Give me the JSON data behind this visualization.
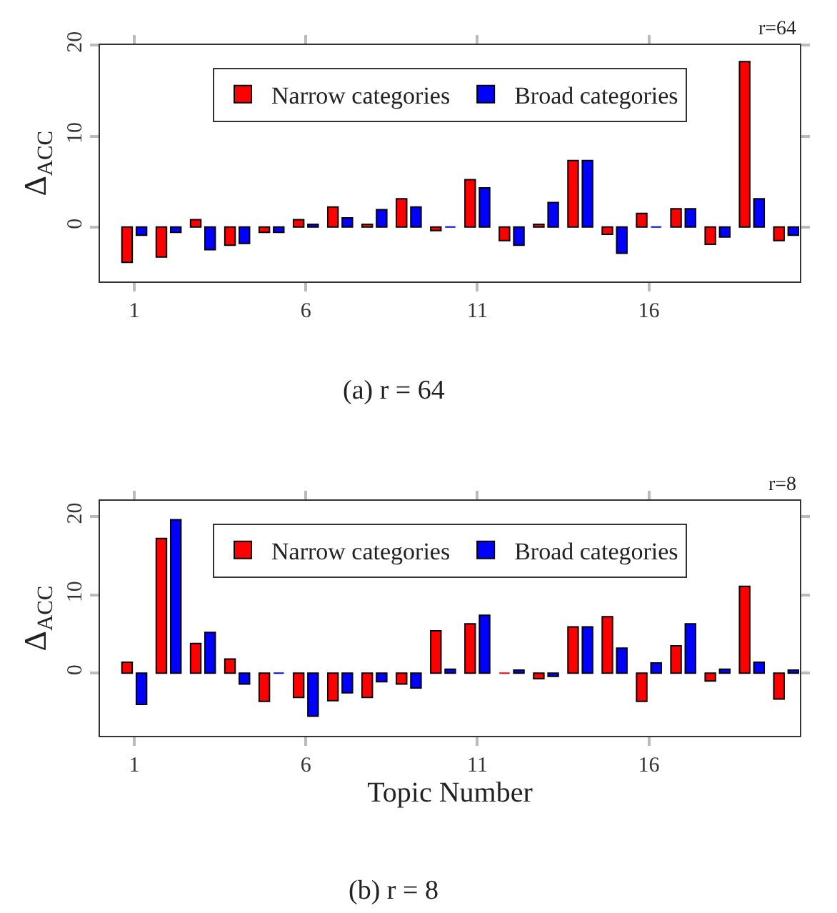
{
  "chart_data": [
    {
      "type": "bar",
      "ylabel": "Δ$_{ACC}$",
      "annotations": [
        "r=64",
        "(a) r = 64"
      ],
      "x": [
        1,
        2,
        3,
        4,
        5,
        6,
        7,
        8,
        9,
        10,
        11,
        12,
        13,
        14,
        15,
        16,
        17,
        18,
        19,
        20
      ],
      "series": [
        {
          "name": "Narrow categories",
          "color": "#ff0000",
          "values": [
            -3.9,
            -3.3,
            0.8,
            -2.0,
            -0.6,
            0.8,
            2.2,
            0.3,
            3.1,
            -0.4,
            5.2,
            -1.5,
            0.3,
            7.3,
            -0.8,
            1.5,
            2.0,
            -1.9,
            18.2,
            -1.5
          ]
        },
        {
          "name": "Broad categories",
          "color": "#0000ff",
          "values": [
            -0.9,
            -0.6,
            -2.5,
            -1.8,
            -0.6,
            0.3,
            1.0,
            1.9,
            2.2,
            0,
            4.3,
            -2.0,
            2.7,
            7.3,
            -2.9,
            0,
            2.0,
            -1.1,
            3.1,
            -0.9
          ]
        }
      ],
      "xlim": [
        0,
        20.4
      ],
      "xticks": [
        1,
        6,
        11,
        16
      ],
      "ylim": [
        -6,
        20
      ],
      "yticks": [
        0,
        10,
        20
      ],
      "legend": "top"
    },
    {
      "type": "bar",
      "ylabel": "Δ$_{ACC}$",
      "xlabel": "Topic Number",
      "annotations": [
        "r=8",
        "(b) r = 8"
      ],
      "x": [
        1,
        2,
        3,
        4,
        5,
        6,
        7,
        8,
        9,
        10,
        11,
        12,
        13,
        14,
        15,
        16,
        17,
        18,
        19,
        20
      ],
      "series": [
        {
          "name": "Narrow categories",
          "color": "#ff0000",
          "values": [
            1.4,
            17.2,
            3.8,
            1.8,
            -3.6,
            -3.1,
            -3.5,
            -3.1,
            -1.4,
            5.4,
            6.3,
            0,
            -0.7,
            5.9,
            7.2,
            -3.6,
            3.5,
            -1.0,
            11.1,
            -3.3
          ]
        },
        {
          "name": "Broad categories",
          "color": "#0000ff",
          "values": [
            -4.0,
            19.6,
            5.2,
            -1.4,
            0,
            -5.5,
            -2.5,
            -1.1,
            -1.9,
            0.5,
            7.4,
            0.4,
            -0.4,
            5.9,
            3.2,
            1.3,
            6.3,
            0.5,
            1.4,
            0.4
          ]
        }
      ],
      "xlim": [
        0,
        20.4
      ],
      "xticks": [
        1,
        6,
        11,
        16
      ],
      "ylim": [
        -8,
        22
      ],
      "yticks": [
        0,
        10,
        20
      ],
      "legend": "top"
    }
  ]
}
